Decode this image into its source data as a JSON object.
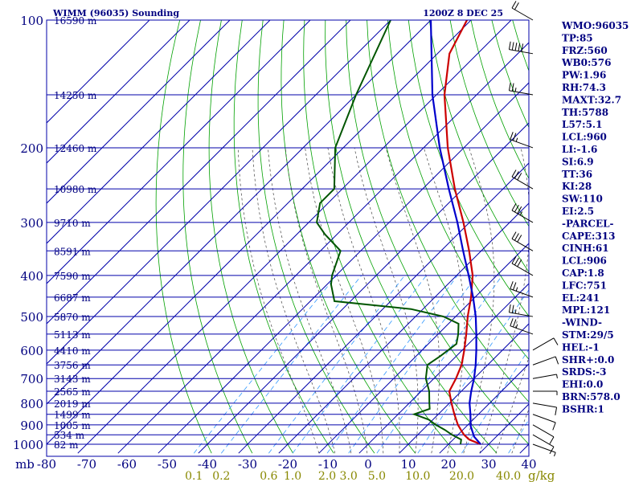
{
  "header": {
    "title": "WIMM (96035) Sounding",
    "time": "1200Z  8 DEC 25"
  },
  "colors": {
    "grid": "#0000aa",
    "dry_adiabat": "#00a000",
    "moist_adiabat": "#444444",
    "mixing_ratio": "#3399ff",
    "temperature": "#cc0000",
    "dewpoint": "#005500",
    "parcel": "#0000cc",
    "text": "#000080",
    "mixing_label": "#888800"
  },
  "chart_data": {
    "type": "line",
    "title": "WIMM (96035) Sounding",
    "xlabel": "",
    "ylabel": "",
    "y_unit_label": "mb",
    "x_unit_label": "g/kg",
    "pressure_levels": [
      100,
      200,
      300,
      400,
      500,
      600,
      700,
      800,
      900,
      1000
    ],
    "temperature_ticks": [
      -80,
      -70,
      -60,
      -50,
      -40,
      -30,
      -20,
      -10,
      0,
      10,
      20,
      30,
      40
    ],
    "temperature_tick_labels": [
      "-80",
      "-70",
      "-60",
      "-50",
      "-40",
      "-30",
      "-20",
      "-10",
      "0",
      "10",
      "20",
      "30",
      "40"
    ],
    "mixing_ratio_labels": [
      "0.1",
      "0.2",
      "0.6",
      "1.0",
      "2.0",
      "3.0",
      "5.0",
      "10.0",
      "20.0",
      "40.0"
    ],
    "height_labels": [
      {
        "p": 100,
        "label": "16590 m"
      },
      {
        "p": 150,
        "label": "14250 m"
      },
      {
        "p": 200,
        "label": "12460 m"
      },
      {
        "p": 250,
        "label": "10980 m"
      },
      {
        "p": 300,
        "label": "9710 m"
      },
      {
        "p": 350,
        "label": "8591 m"
      },
      {
        "p": 400,
        "label": "7590 m"
      },
      {
        "p": 450,
        "label": "6687 m"
      },
      {
        "p": 500,
        "label": "5870 m"
      },
      {
        "p": 550,
        "label": "5113 m"
      },
      {
        "p": 600,
        "label": "4410 m"
      },
      {
        "p": 650,
        "label": "3756 m"
      },
      {
        "p": 700,
        "label": "3143 m"
      },
      {
        "p": 750,
        "label": "2565 m"
      },
      {
        "p": 800,
        "label": "2019 m"
      },
      {
        "p": 850,
        "label": "1499 m"
      },
      {
        "p": 900,
        "label": "1005 m"
      },
      {
        "p": 950,
        "label": "534 m"
      },
      {
        "p": 1000,
        "label": "82 m"
      }
    ],
    "series": [
      {
        "name": "",
        "role": "temperature",
        "points": [
          [
            1000,
            28.0
          ],
          [
            975,
            24.0
          ],
          [
            950,
            21.5
          ],
          [
            925,
            19.5
          ],
          [
            900,
            17.5
          ],
          [
            850,
            14.0
          ],
          [
            800,
            10.5
          ],
          [
            750,
            7.0
          ],
          [
            700,
            5.5
          ],
          [
            650,
            3.5
          ],
          [
            600,
            0.5
          ],
          [
            550,
            -3.0
          ],
          [
            500,
            -7.0
          ],
          [
            450,
            -11.0
          ],
          [
            400,
            -16.0
          ],
          [
            350,
            -23.0
          ],
          [
            300,
            -31.5
          ],
          [
            250,
            -42.0
          ],
          [
            200,
            -54.0
          ],
          [
            150,
            -68.0
          ],
          [
            120,
            -77.0
          ],
          [
            100,
            -81.0
          ]
        ]
      },
      {
        "name": "",
        "role": "dewpoint",
        "points": [
          [
            1000,
            23.0
          ],
          [
            975,
            22.0
          ],
          [
            950,
            18.5
          ],
          [
            925,
            15.5
          ],
          [
            900,
            12.0
          ],
          [
            875,
            9.0
          ],
          [
            850,
            4.0
          ],
          [
            825,
            6.5
          ],
          [
            800,
            5.0
          ],
          [
            750,
            2.0
          ],
          [
            700,
            -2.0
          ],
          [
            650,
            -5.0
          ],
          [
            620,
            -4.0
          ],
          [
            580,
            -3.0
          ],
          [
            550,
            -5.0
          ],
          [
            520,
            -7.5
          ],
          [
            500,
            -13.0
          ],
          [
            480,
            -23.0
          ],
          [
            460,
            -44.0
          ],
          [
            420,
            -49.0
          ],
          [
            400,
            -51.0
          ],
          [
            350,
            -55.0
          ],
          [
            320,
            -63.0
          ],
          [
            300,
            -68.0
          ],
          [
            270,
            -72.0
          ],
          [
            250,
            -72.0
          ],
          [
            200,
            -82.0
          ],
          [
            150,
            -90.0
          ],
          [
            100,
            -100.0
          ]
        ]
      },
      {
        "name": "",
        "role": "parcel",
        "points": [
          [
            1000,
            28.0
          ],
          [
            960,
            24.5
          ],
          [
            906,
            21.0
          ],
          [
            850,
            18.0
          ],
          [
            800,
            15.0
          ],
          [
            751,
            12.5
          ],
          [
            700,
            10.0
          ],
          [
            650,
            7.0
          ],
          [
            600,
            3.5
          ],
          [
            550,
            -0.5
          ],
          [
            500,
            -5.0
          ],
          [
            450,
            -10.5
          ],
          [
            400,
            -17.0
          ],
          [
            350,
            -24.5
          ],
          [
            300,
            -33.0
          ],
          [
            250,
            -43.5
          ],
          [
            200,
            -56.0
          ],
          [
            150,
            -71.0
          ],
          [
            100,
            -90.0
          ]
        ]
      }
    ],
    "wind_barbs": [
      {
        "p": 1000,
        "dir": 110,
        "spd": 5
      },
      {
        "p": 950,
        "dir": 120,
        "spd": 10
      },
      {
        "p": 900,
        "dir": 120,
        "spd": 10
      },
      {
        "p": 850,
        "dir": 110,
        "spd": 10
      },
      {
        "p": 800,
        "dir": 100,
        "spd": 10
      },
      {
        "p": 750,
        "dir": 90,
        "spd": 5
      },
      {
        "p": 700,
        "dir": 80,
        "spd": 5
      },
      {
        "p": 650,
        "dir": 70,
        "spd": 10
      },
      {
        "p": 600,
        "dir": 60,
        "spd": 10
      },
      {
        "p": 550,
        "dir": 290,
        "spd": 25
      },
      {
        "p": 500,
        "dir": 280,
        "spd": 25
      },
      {
        "p": 450,
        "dir": 290,
        "spd": 25
      },
      {
        "p": 400,
        "dir": 300,
        "spd": 30
      },
      {
        "p": 350,
        "dir": 300,
        "spd": 30
      },
      {
        "p": 300,
        "dir": 300,
        "spd": 35
      },
      {
        "p": 250,
        "dir": 300,
        "spd": 30
      },
      {
        "p": 200,
        "dir": 290,
        "spd": 25
      },
      {
        "p": 150,
        "dir": 280,
        "spd": 25
      },
      {
        "p": 120,
        "dir": 280,
        "spd": 50
      },
      {
        "p": 100,
        "dir": 300,
        "spd": 20
      }
    ]
  },
  "indices": [
    "WMO:96035",
    "TP:85",
    "FRZ:560",
    "WB0:576",
    "PW:1.96",
    "RH:74.3",
    "MAXT:32.7",
    "TH:5788",
    "L57:5.1",
    "LCL:960",
    "LI:-1.6",
    "SI:6.9",
    "TT:36",
    "KI:28",
    "SW:110",
    "EI:2.5",
    "-PARCEL-",
    "CAPE:313",
    "CINH:61",
    "LCL:906",
    "CAP:1.8",
    "LFC:751",
    "EL:241",
    "MPL:121",
    "-WIND-",
    "STM:29/5",
    "HEL:-1",
    "SHR+:0.0",
    "SRDS:-3",
    "EHI:0.0",
    "BRN:578.0",
    "BSHR:1"
  ]
}
